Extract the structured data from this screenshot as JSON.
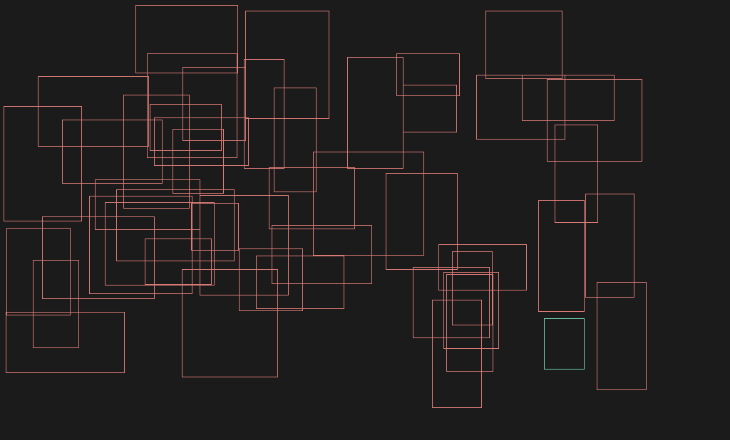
{
  "canvas": {
    "background": "#1b1b1b"
  },
  "colors": {
    "box_outline": "#d97a75",
    "highlight_outline": "#6fd2b3"
  }
}
